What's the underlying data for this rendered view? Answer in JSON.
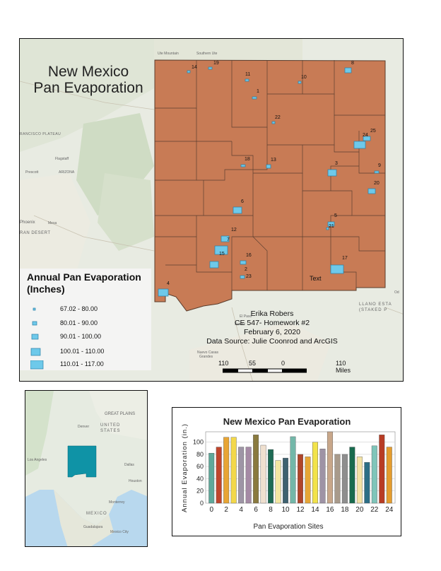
{
  "map": {
    "title_line1": "New Mexico",
    "title_line2": "Pan Evaporation",
    "state_fill": "#c87b55",
    "site_symbol_color": "#6ec9ea",
    "legend": {
      "title_line1": "Annual Pan Evaporation",
      "title_line2": "(Inches)",
      "classes": [
        "67.02 - 80.00",
        "80.01 - 90.00",
        "90.01 - 100.00",
        "100.01 - 110.00",
        "110.01 - 117.00"
      ]
    },
    "author": "Erika Robers",
    "course": "CE 547- Homework #2",
    "date": "February 6, 2020",
    "source": "Data Source: Julie Coonrod and ArcGIS",
    "scale_ticks": [
      "110",
      "55",
      "0",
      "110 Miles"
    ],
    "text_label": "Text",
    "site_labels": [
      "14",
      "19",
      "11",
      "10",
      "8",
      "1",
      "22",
      "24",
      "25",
      "18",
      "13",
      "3",
      "9",
      "20",
      "6",
      "5",
      "21",
      "12",
      "7",
      "15",
      "16",
      "2",
      "23",
      "17",
      "4"
    ],
    "basemap_labels": [
      "Ute Mountain",
      "Southern Ute",
      "Flagstaff",
      "ARIZONA",
      "Prescott",
      "Phoenix",
      "Mesa",
      "El Paso",
      "Juárez",
      "LLANO ESTA",
      "(STAKED P",
      "Nuevo Casas",
      "Grandes",
      "RANCISCO PLATEAU",
      "RAN DESERT",
      "Od"
    ]
  },
  "inset": {
    "labels": [
      "GREAT PLAINS",
      "UNITED",
      "STATES",
      "Denver",
      "Los Angeles",
      "Dallas",
      "Houston",
      "Monterrey",
      "MEXICO",
      "Guadalajara",
      "Mexico City"
    ],
    "highlight_color": "#0f93a6"
  },
  "chart_data": {
    "type": "bar",
    "title": "New Mexico Pan Evaporation",
    "xlabel": "Pan Evaporation Sites",
    "ylabel": "Annual Evaporation (in.)",
    "ylim": [
      0,
      117
    ],
    "yticks": [
      0,
      20,
      40,
      60,
      80,
      100
    ],
    "xticks": [
      0,
      2,
      4,
      6,
      8,
      10,
      12,
      14,
      16,
      18,
      20,
      22,
      24
    ],
    "categories": [
      0,
      1,
      2,
      3,
      4,
      5,
      6,
      7,
      8,
      9,
      10,
      11,
      12,
      13,
      14,
      15,
      16,
      17,
      18,
      19,
      20,
      21,
      22,
      23,
      24
    ],
    "values": [
      82,
      92,
      108,
      108,
      92,
      92,
      112,
      95,
      88,
      70,
      74,
      109,
      80,
      76,
      100,
      89,
      117,
      80,
      80,
      92,
      76,
      67,
      94,
      112,
      92
    ],
    "colors": [
      "#5fa89a",
      "#c0452c",
      "#e8a534",
      "#f3d84a",
      "#9e95a6",
      "#a58aa5",
      "#8a7a3e",
      "#efe0cf",
      "#1f6b55",
      "#f3e7a2",
      "#3e6170",
      "#73b7a9",
      "#b0452a",
      "#e6a637",
      "#f2e34a",
      "#9e93a5",
      "#c8a78a",
      "#a89a8b",
      "#8e8e8e",
      "#196b4e",
      "#f3e2a5",
      "#2c6e86",
      "#7fc5ba",
      "#b83c24",
      "#e49c2d"
    ]
  }
}
